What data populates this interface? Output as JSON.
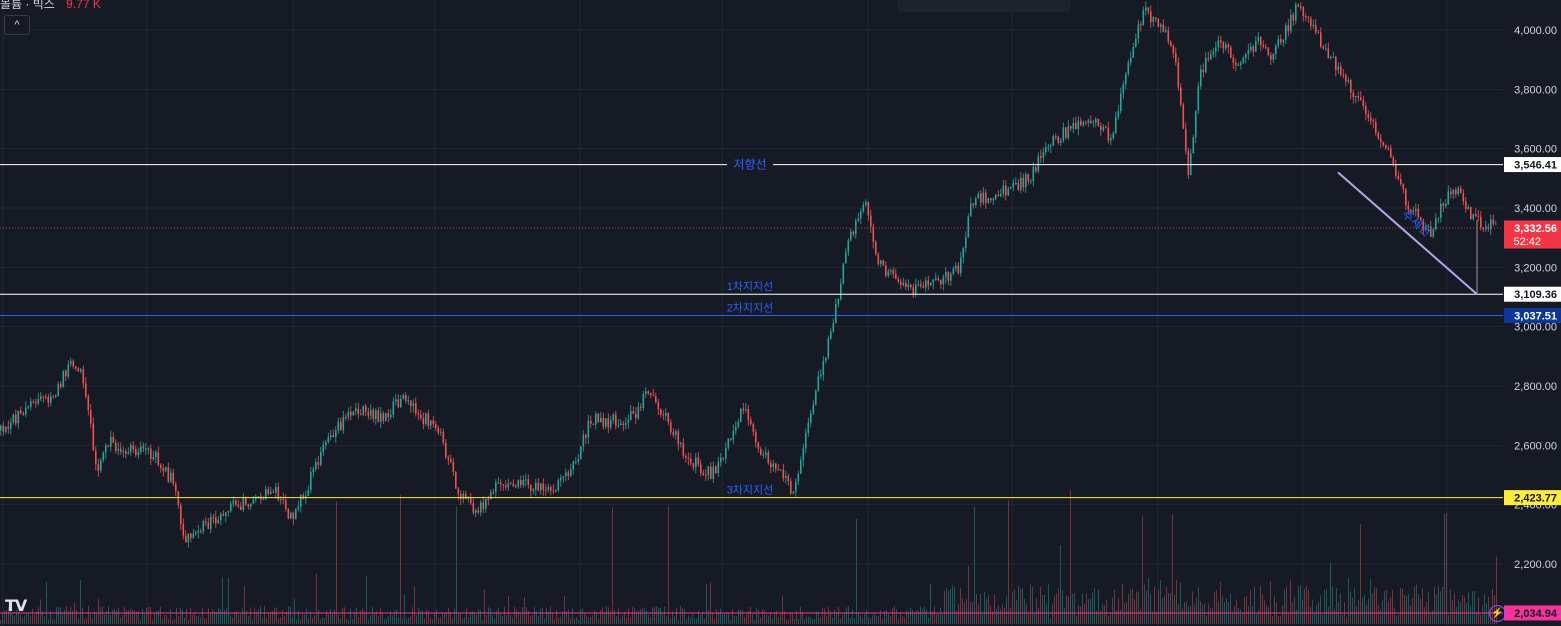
{
  "legend": {
    "label": "볼륨 · 빅스",
    "value": "9.77 K"
  },
  "collapse_glyph": "^",
  "logo_text": "TV",
  "chart_data": {
    "type": "candlestick",
    "ylim": [
      2000,
      4100
    ],
    "y_ticks": [
      {
        "value": 2200,
        "label": "2,200.00"
      },
      {
        "value": 2400,
        "label": "2,400.00"
      },
      {
        "value": 2600,
        "label": "2,600.00"
      },
      {
        "value": 2800,
        "label": "2,800.00"
      },
      {
        "value": 3000,
        "label": "3,000.00"
      },
      {
        "value": 3200,
        "label": "3,200.00"
      },
      {
        "value": 3400,
        "label": "3,400.00"
      },
      {
        "value": 3600,
        "label": "3,600.00"
      },
      {
        "value": 3800,
        "label": "3,800.00"
      },
      {
        "value": 4000,
        "label": "4,000.00"
      }
    ],
    "price_path": [
      [
        0,
        2650
      ],
      [
        0.02,
        2720
      ],
      [
        0.04,
        2760
      ],
      [
        0.055,
        2880
      ],
      [
        0.065,
        2830
      ],
      [
        0.07,
        2690
      ],
      [
        0.075,
        2520
      ],
      [
        0.085,
        2610
      ],
      [
        0.1,
        2580
      ],
      [
        0.12,
        2570
      ],
      [
        0.135,
        2480
      ],
      [
        0.145,
        2290
      ],
      [
        0.16,
        2330
      ],
      [
        0.18,
        2390
      ],
      [
        0.2,
        2420
      ],
      [
        0.215,
        2450
      ],
      [
        0.23,
        2350
      ],
      [
        0.245,
        2500
      ],
      [
        0.26,
        2640
      ],
      [
        0.28,
        2720
      ],
      [
        0.3,
        2690
      ],
      [
        0.315,
        2760
      ],
      [
        0.33,
        2700
      ],
      [
        0.345,
        2660
      ],
      [
        0.36,
        2440
      ],
      [
        0.375,
        2380
      ],
      [
        0.39,
        2460
      ],
      [
        0.41,
        2480
      ],
      [
        0.43,
        2440
      ],
      [
        0.45,
        2520
      ],
      [
        0.465,
        2690
      ],
      [
        0.48,
        2680
      ],
      [
        0.5,
        2700
      ],
      [
        0.51,
        2790
      ],
      [
        0.525,
        2680
      ],
      [
        0.54,
        2560
      ],
      [
        0.56,
        2500
      ],
      [
        0.575,
        2630
      ],
      [
        0.585,
        2740
      ],
      [
        0.595,
        2610
      ],
      [
        0.61,
        2520
      ],
      [
        0.625,
        2440
      ],
      [
        0.64,
        2760
      ],
      [
        0.655,
        3000
      ],
      [
        0.665,
        3250
      ],
      [
        0.68,
        3440
      ],
      [
        0.69,
        3220
      ],
      [
        0.705,
        3160
      ],
      [
        0.72,
        3120
      ],
      [
        0.74,
        3160
      ],
      [
        0.755,
        3190
      ],
      [
        0.765,
        3430
      ],
      [
        0.78,
        3440
      ],
      [
        0.795,
        3470
      ],
      [
        0.81,
        3500
      ],
      [
        0.825,
        3620
      ],
      [
        0.84,
        3660
      ],
      [
        0.86,
        3700
      ],
      [
        0.875,
        3630
      ],
      [
        0.885,
        3860
      ],
      [
        0.9,
        4060
      ],
      [
        0.915,
        4010
      ],
      [
        0.925,
        3880
      ],
      [
        0.935,
        3520
      ],
      [
        0.945,
        3860
      ],
      [
        0.96,
        3960
      ],
      [
        0.975,
        3880
      ],
      [
        0.99,
        3960
      ],
      [
        0.995,
        3930
      ],
      [
        1.0,
        3900
      ]
    ],
    "price_path_2": [
      [
        0,
        3900
      ],
      [
        0.12,
        4080
      ],
      [
        0.25,
        3920
      ],
      [
        0.4,
        3750
      ],
      [
        0.5,
        3620
      ],
      [
        0.6,
        3420
      ],
      [
        0.7,
        3310
      ],
      [
        0.8,
        3480
      ],
      [
        0.9,
        3360
      ],
      [
        1.0,
        3332.56
      ]
    ],
    "horizontal_lines": [
      {
        "name": "resistance",
        "label": "저향선",
        "price": 3546.41,
        "price_label": "3,546.41",
        "color": "#ffffff"
      },
      {
        "name": "support-1",
        "label": "1차지지선",
        "price": 3109.36,
        "price_label": "3,109.36",
        "color": "#ffffff"
      },
      {
        "name": "support-2",
        "label": "2차지지선",
        "price": 3037.51,
        "price_label": "3,037.51",
        "color": "#2962ff"
      },
      {
        "name": "support-3",
        "label": "3차지지선",
        "price": 2423.77,
        "price_label": "2,423.77",
        "color": "#ffeb3b"
      },
      {
        "name": "bottom-line",
        "label": "",
        "price": 2034.94,
        "price_label": "2,034.94",
        "color": "#f7329a"
      }
    ],
    "last_price": {
      "price": 3332.56,
      "label": "3,332.56",
      "countdown": "52:42",
      "color": "#f23645"
    },
    "trend_line": {
      "label": "추세선",
      "start_price": 3520,
      "end_price": 3109.36,
      "color": "#b2a7e6"
    }
  },
  "colors": {
    "background": "#161a25",
    "grid": "#232733",
    "up": "#26a69a",
    "down": "#ef5350",
    "axis_text": "#d1d4dc"
  }
}
